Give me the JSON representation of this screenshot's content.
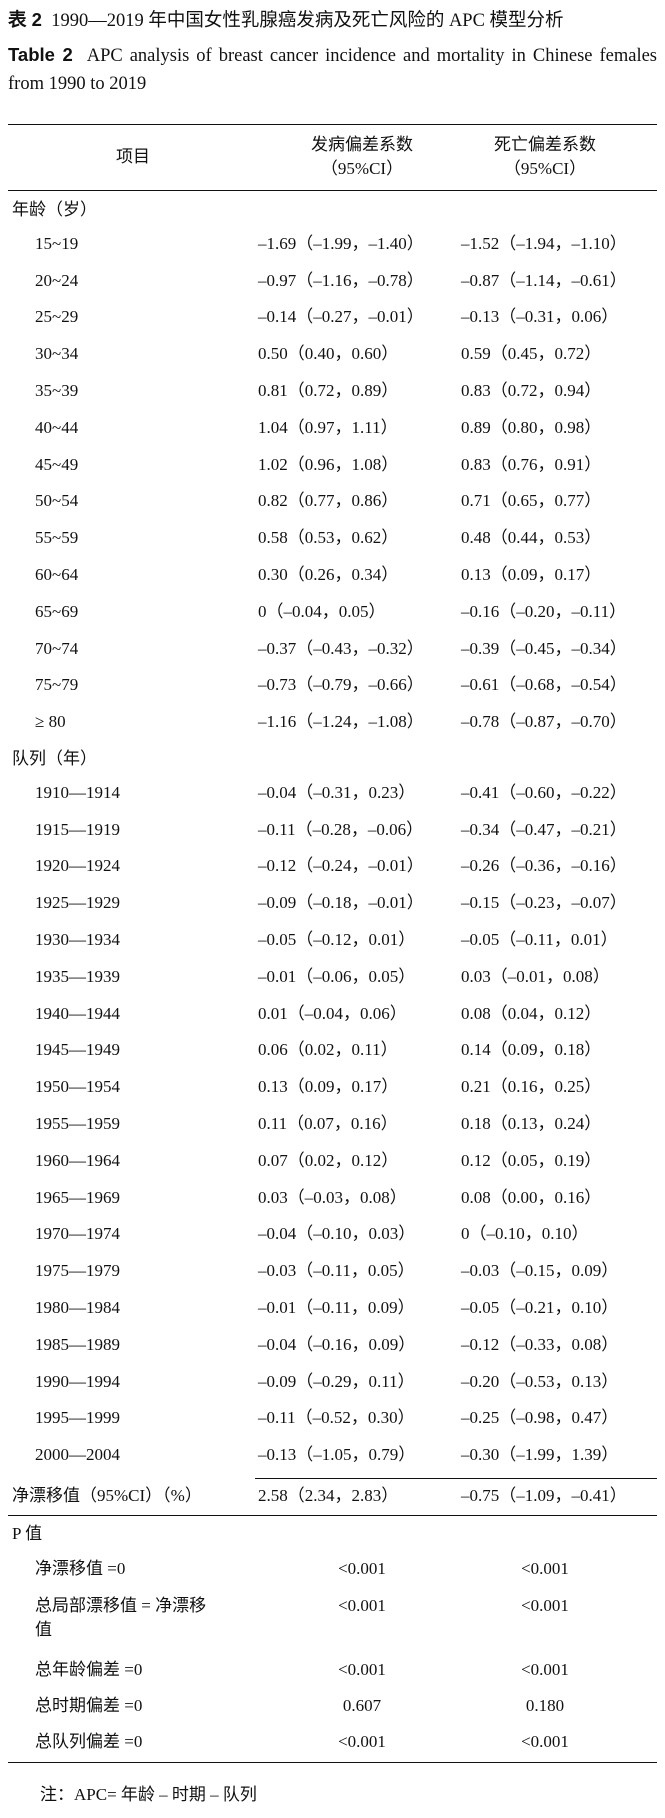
{
  "caption": {
    "zh_label": "表 2",
    "zh_text": "1990—2019 年中国女性乳腺癌发病及死亡风险的 APC 模型分析",
    "en_label": "Table 2",
    "en_text": "APC analysis of breast cancer incidence and mortality in Chinese females from 1990 to 2019"
  },
  "table": {
    "header": [
      [
        "项目"
      ],
      [
        "发病偏差系数",
        "（95%CI）"
      ],
      [
        "死亡偏差系数",
        "（95%CI）"
      ]
    ],
    "sections": [
      {
        "title": "年龄（岁）",
        "rows": [
          [
            "15~19",
            "–1.69（–1.99，–1.40）",
            "–1.52（–1.94，–1.10）"
          ],
          [
            "20~24",
            "–0.97（–1.16，–0.78）",
            "–0.87（–1.14，–0.61）"
          ],
          [
            "25~29",
            "–0.14（–0.27，–0.01）",
            "–0.13（–0.31，0.06）"
          ],
          [
            "30~34",
            "0.50（0.40，0.60）",
            "0.59（0.45，0.72）"
          ],
          [
            "35~39",
            "0.81（0.72，0.89）",
            "0.83（0.72，0.94）"
          ],
          [
            "40~44",
            "1.04（0.97，1.11）",
            "0.89（0.80，0.98）"
          ],
          [
            "45~49",
            "1.02（0.96，1.08）",
            "0.83（0.76，0.91）"
          ],
          [
            "50~54",
            "0.82（0.77，0.86）",
            "0.71（0.65，0.77）"
          ],
          [
            "55~59",
            "0.58（0.53，0.62）",
            "0.48（0.44，0.53）"
          ],
          [
            "60~64",
            "0.30（0.26，0.34）",
            "0.13（0.09，0.17）"
          ],
          [
            "65~69",
            "0（–0.04，0.05）",
            "–0.16（–0.20，–0.11）"
          ],
          [
            "70~74",
            "–0.37（–0.43，–0.32）",
            "–0.39（–0.45，–0.34）"
          ],
          [
            "75~79",
            "–0.73（–0.79，–0.66）",
            "–0.61（–0.68，–0.54）"
          ],
          [
            "≥ 80",
            "–1.16（–1.24，–1.08）",
            "–0.78（–0.87，–0.70）"
          ]
        ]
      },
      {
        "title": "队列（年）",
        "rows": [
          [
            "1910—1914",
            "–0.04（–0.31，0.23）",
            "–0.41（–0.60，–0.22）"
          ],
          [
            "1915—1919",
            "–0.11（–0.28，–0.06）",
            "–0.34（–0.47，–0.21）"
          ],
          [
            "1920—1924",
            "–0.12（–0.24，–0.01）",
            "–0.26（–0.36，–0.16）"
          ],
          [
            "1925—1929",
            "–0.09（–0.18，–0.01）",
            "–0.15（–0.23，–0.07）"
          ],
          [
            "1930—1934",
            "–0.05（–0.12，0.01）",
            "–0.05（–0.11，0.01）"
          ],
          [
            "1935—1939",
            "–0.01（–0.06，0.05）",
            "0.03（–0.01，0.08）"
          ],
          [
            "1940—1944",
            "0.01（–0.04，0.06）",
            "0.08（0.04，0.12）"
          ],
          [
            "1945—1949",
            "0.06（0.02，0.11）",
            "0.14（0.09，0.18）"
          ],
          [
            "1950—1954",
            "0.13（0.09，0.17）",
            "0.21（0.16，0.25）"
          ],
          [
            "1955—1959",
            "0.11（0.07，0.16）",
            "0.18（0.13，0.24）"
          ],
          [
            "1960—1964",
            "0.07（0.02，0.12）",
            "0.12（0.05，0.19）"
          ],
          [
            "1965—1969",
            "0.03（–0.03，0.08）",
            "0.08（0.00，0.16）"
          ],
          [
            "1970—1974",
            "–0.04（–0.10，0.03）",
            "0（–0.10，0.10）"
          ],
          [
            "1975—1979",
            "–0.03（–0.11，0.05）",
            "–0.03（–0.15，0.09）"
          ],
          [
            "1980—1984",
            "–0.01（–0.11，0.09）",
            "–0.05（–0.21，0.10）"
          ],
          [
            "1985—1989",
            "–0.04（–0.16，0.09）",
            "–0.12（–0.33，0.08）"
          ],
          [
            "1990—1994",
            "–0.09（–0.29，0.11）",
            "–0.20（–0.53，0.13）"
          ],
          [
            "1995—1999",
            "–0.11（–0.52，0.30）",
            "–0.25（–0.98，0.47）"
          ],
          [
            "2000—2004",
            "–0.13（–1.05，0.79）",
            "–0.30（–1.99，1.39）"
          ]
        ]
      }
    ],
    "net_drift": [
      "净漂移值（95%CI）（%）",
      "2.58（2.34，2.83）",
      "–0.75（–1.09，–0.41）"
    ],
    "p_section": {
      "title": "P 值",
      "rows": [
        [
          "净漂移值 =0",
          "<0.001",
          "<0.001"
        ],
        [
          "总局部漂移值 = 净漂移值",
          "<0.001",
          "<0.001"
        ],
        [
          "总年龄偏差 =0",
          "<0.001",
          "<0.001"
        ],
        [
          "总时期偏差 =0",
          "0.607",
          "0.180"
        ],
        [
          "总队列偏差 =0",
          "<0.001",
          "<0.001"
        ]
      ]
    }
  },
  "note": "注：APC= 年龄 – 时期 – 队列"
}
